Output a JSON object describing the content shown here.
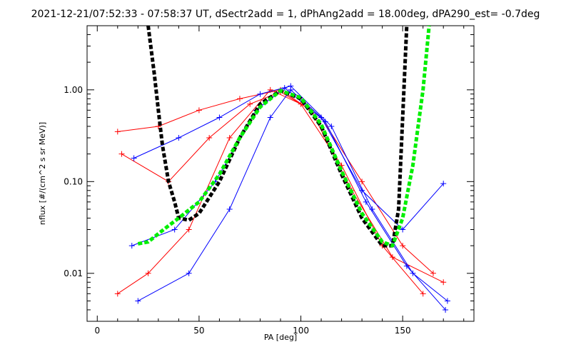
{
  "chart_data": {
    "type": "line",
    "title": "2021-12-21/07:52:33 - 07:58:37 UT, dSectr2add = 1, dPhAng2add = 18.00deg, dPA290_est=  -0.7deg",
    "xlabel": "PA [deg]",
    "ylabel": "nflux [#/(cm^2 s sr MeV)]",
    "x_scale": "linear",
    "y_scale": "log",
    "xlim": [
      -5,
      185
    ],
    "ylim": [
      0.003,
      5
    ],
    "x_ticks": [
      0,
      50,
      100,
      150
    ],
    "x_tick_labels": [
      "0",
      "50",
      "100",
      "150"
    ],
    "y_ticks": [
      0.01,
      0.1,
      1.0
    ],
    "y_tick_labels": [
      "0.01",
      "0.10",
      "1.00"
    ],
    "colors": {
      "red": "#ff0000",
      "blue": "#0000ff",
      "black": "#000000",
      "green": "#00ee00"
    },
    "series": [
      {
        "color": "red",
        "style": "thin-line-plus-markers",
        "x": [
          [
            10,
            30,
            50,
            70,
            90,
            110,
            130,
            150,
            165
          ],
          [
            12,
            35,
            55,
            75,
            90,
            105,
            125,
            145,
            170
          ],
          [
            10,
            25,
            45,
            65,
            85,
            100,
            120,
            140,
            160
          ]
        ],
        "y": [
          [
            0.35,
            0.4,
            0.6,
            0.8,
            1.0,
            0.5,
            0.1,
            0.02,
            0.01
          ],
          [
            0.2,
            0.1,
            0.3,
            0.7,
            0.95,
            0.6,
            0.08,
            0.015,
            0.008
          ],
          [
            0.006,
            0.01,
            0.03,
            0.3,
            1.0,
            0.7,
            0.15,
            0.02,
            0.006
          ]
        ]
      },
      {
        "color": "blue",
        "style": "thin-line-plus-markers",
        "x": [
          [
            18,
            40,
            60,
            80,
            95,
            115,
            135,
            155,
            172
          ],
          [
            20,
            45,
            65,
            85,
            95,
            110,
            130,
            150,
            170
          ],
          [
            17,
            38,
            58,
            78,
            92,
            112,
            132,
            152,
            171
          ]
        ],
        "y": [
          [
            0.18,
            0.3,
            0.5,
            0.9,
            1.1,
            0.4,
            0.05,
            0.01,
            0.005
          ],
          [
            0.005,
            0.01,
            0.05,
            0.5,
            1.0,
            0.5,
            0.08,
            0.03,
            0.095
          ],
          [
            0.02,
            0.03,
            0.1,
            0.6,
            1.05,
            0.45,
            0.06,
            0.012,
            0.004
          ]
        ]
      },
      {
        "color": "black",
        "style": "thick-dashed",
        "x": [
          25,
          28,
          30,
          32,
          35,
          38,
          40,
          45,
          50,
          60,
          70,
          80,
          90,
          100,
          110,
          120,
          130,
          140,
          145,
          148,
          150,
          152
        ],
        "y": [
          5.0,
          1.5,
          0.6,
          0.25,
          0.1,
          0.06,
          0.04,
          0.038,
          0.045,
          0.1,
          0.3,
          0.7,
          0.98,
          0.8,
          0.4,
          0.12,
          0.04,
          0.02,
          0.02,
          0.05,
          0.5,
          5.0
        ]
      },
      {
        "color": "green",
        "style": "thick-dashed",
        "x": [
          20,
          25,
          30,
          35,
          40,
          50,
          60,
          70,
          80,
          90,
          100,
          110,
          120,
          130,
          140,
          145,
          150,
          155,
          160,
          163
        ],
        "y": [
          0.021,
          0.022,
          0.027,
          0.033,
          0.04,
          0.06,
          0.12,
          0.3,
          0.65,
          0.98,
          0.82,
          0.42,
          0.13,
          0.045,
          0.022,
          0.02,
          0.04,
          0.15,
          1.0,
          5.0
        ]
      }
    ]
  }
}
